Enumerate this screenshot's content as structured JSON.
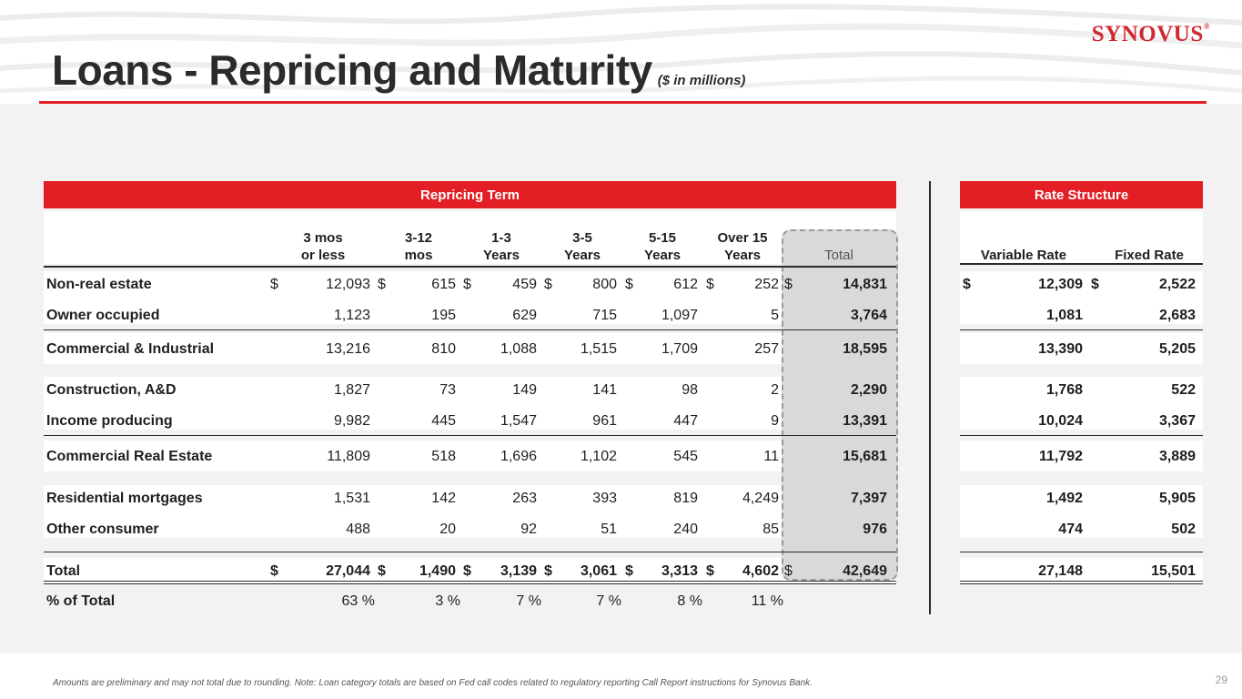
{
  "header": {
    "title": "Loans - Repricing and Maturity",
    "subtitle": "($ in millions)",
    "logo": "SYNOVUS",
    "logo_mark": "®"
  },
  "table": {
    "repricing_label": "Repricing Term",
    "rate_label": "Rate Structure",
    "columns": [
      {
        "l1": "3 mos",
        "l2": "or less"
      },
      {
        "l1": "3-12",
        "l2": "mos"
      },
      {
        "l1": "1-3",
        "l2": "Years"
      },
      {
        "l1": "3-5",
        "l2": "Years"
      },
      {
        "l1": "5-15",
        "l2": "Years"
      },
      {
        "l1": "Over 15",
        "l2": "Years"
      }
    ],
    "total_header": "Total",
    "variable_header": "Variable Rate",
    "fixed_header": "Fixed Rate",
    "dollar_sign": "$",
    "rows": [
      {
        "label": "Non-real estate",
        "values": [
          "12,093",
          "615",
          "459",
          "800",
          "612",
          "252"
        ],
        "total": "14,831",
        "variable": "12,309",
        "fixed": "2,522"
      },
      {
        "label": "Owner occupied",
        "values": [
          "1,123",
          "195",
          "629",
          "715",
          "1,097",
          "5"
        ],
        "total": "3,764",
        "variable": "1,081",
        "fixed": "2,683"
      },
      {
        "label": "Commercial & Industrial",
        "values": [
          "13,216",
          "810",
          "1,088",
          "1,515",
          "1,709",
          "257"
        ],
        "total": "18,595",
        "variable": "13,390",
        "fixed": "5,205"
      },
      {
        "label": "Construction, A&D",
        "values": [
          "1,827",
          "73",
          "149",
          "141",
          "98",
          "2"
        ],
        "total": "2,290",
        "variable": "1,768",
        "fixed": "522"
      },
      {
        "label": "Income producing",
        "values": [
          "9,982",
          "445",
          "1,547",
          "961",
          "447",
          "9"
        ],
        "total": "13,391",
        "variable": "10,024",
        "fixed": "3,367"
      },
      {
        "label": "Commercial Real Estate",
        "values": [
          "11,809",
          "518",
          "1,696",
          "1,102",
          "545",
          "11"
        ],
        "total": "15,681",
        "variable": "11,792",
        "fixed": "3,889"
      },
      {
        "label": "Residential mortgages",
        "values": [
          "1,531",
          "142",
          "263",
          "393",
          "819",
          "4,249"
        ],
        "total": "7,397",
        "variable": "1,492",
        "fixed": "5,905"
      },
      {
        "label": "Other consumer",
        "values": [
          "488",
          "20",
          "92",
          "51",
          "240",
          "85"
        ],
        "total": "976",
        "variable": "474",
        "fixed": "502"
      },
      {
        "label": "Total",
        "values": [
          "27,044",
          "1,490",
          "3,139",
          "3,061",
          "3,313",
          "4,602"
        ],
        "total": "42,649",
        "variable": "27,148",
        "fixed": "15,501"
      }
    ],
    "pct_row": {
      "label": "% of Total",
      "values": [
        "63 %",
        "3 %",
        "7 %",
        "7 %",
        "8 %",
        "11 %"
      ]
    }
  },
  "footer": {
    "note": "Amounts are preliminary and may not total due to rounding. Note: Loan category totals are based on Fed call codes related to regulatory reporting Call Report instructions for Synovus Bank.",
    "page_number": "29"
  },
  "colors": {
    "accent": "#e31e24",
    "logo": "#d22630"
  }
}
